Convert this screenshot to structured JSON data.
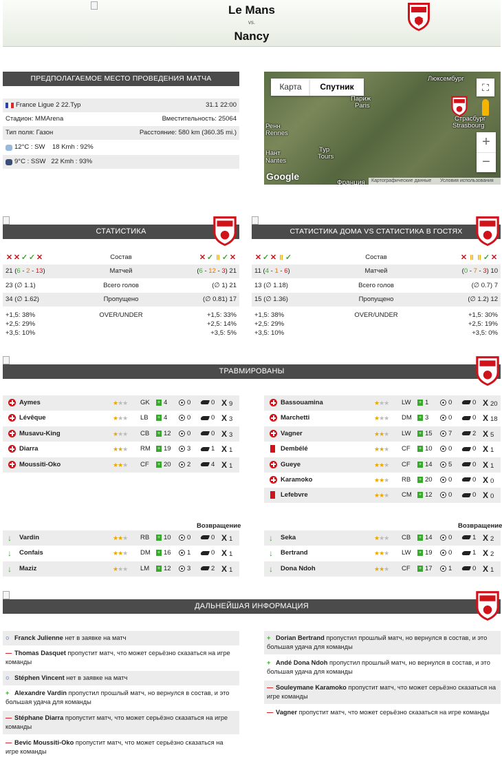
{
  "match": {
    "home": "Le Mans",
    "vs": "vs.",
    "away": "Nancy"
  },
  "venue": {
    "header": "Предполагаемое место проведения матча",
    "league": "France Ligue 2 22.Тур",
    "datetime": "31.1 22:00",
    "stadium": "Стадион: MMArena",
    "capacity": "Вместительность: 25064",
    "field": "Тип поля: Газон",
    "distance": "Расстояние: 580 km (360.35 mi.)",
    "weather1": "12°C : SW    18 Kmh : 92%",
    "weather2": "9°C : SSW   22 Kmh : 93%"
  },
  "map": {
    "btn_map": "Карта",
    "btn_sat": "Спутник",
    "footer1": "Картографические данные",
    "footer2": "Условия использования",
    "labels": [
      "Люксембург",
      "Париж",
      "Paris",
      "Ренн",
      "Rennes",
      "Нант",
      "Nantes",
      "Тур",
      "Tours",
      "Страсбург",
      "Strasbourg",
      "Google",
      "Франция"
    ]
  },
  "stats": {
    "header": "Статистика",
    "form_label": "Состав",
    "home_form": [
      "x",
      "x",
      "ok",
      "ok",
      "x"
    ],
    "away_form": [
      "x",
      "ok",
      "ii",
      "ok",
      "x"
    ],
    "rows": [
      {
        "label": "Матчей",
        "home_total": "21",
        "home_w": "6",
        "home_d": "2",
        "home_l": "13",
        "away_w": "6",
        "away_d": "12",
        "away_l": "3",
        "away_total": "21"
      },
      {
        "label": "Всего голов",
        "home": "23 (∅ 1.1)",
        "away": "(∅ 1) 21"
      },
      {
        "label": "Пропущено",
        "home": "34 (∅ 1.62)",
        "away": "(∅ 0.81) 17"
      }
    ],
    "ou_label": "OVER/UNDER",
    "home_ou": [
      "+1,5: 38%",
      "+2,5: 29%",
      "+3,5: 10%"
    ],
    "away_ou": [
      "+1,5: 33%",
      "+2,5: 14%",
      "+3,5: 5%"
    ]
  },
  "homeaway": {
    "header": "Статистика дома VS статистика в гостях",
    "form_label": "Состав",
    "home_form": [
      "x",
      "ok",
      "x",
      "ii",
      "ok"
    ],
    "away_form": [
      "x",
      "ii",
      "ii",
      "ok",
      "x"
    ],
    "rows": [
      {
        "label": "Матчей",
        "home_total": "11",
        "home_w": "4",
        "home_d": "1",
        "home_l": "6",
        "away_w": "0",
        "away_d": "7",
        "away_l": "3",
        "away_total": "10"
      },
      {
        "label": "Всего голов",
        "home": "13 (∅ 1.18)",
        "away": "(∅ 0.7) 7"
      },
      {
        "label": "Пропущено",
        "home": "15 (∅ 1.36)",
        "away": "(∅ 1.2) 12"
      }
    ],
    "ou_label": "OVER/UNDER",
    "home_ou": [
      "+1,5: 38%",
      "+2,5: 29%",
      "+3,5: 10%"
    ],
    "away_ou": [
      "+1,5: 30%",
      "+2,5: 19%",
      "+3,5: 0%"
    ]
  },
  "injured": {
    "header": "Травмированы",
    "home": [
      {
        "name": "Aymes",
        "type": "plus",
        "stars": 1,
        "pos": "GK",
        "apps": "4",
        "goals": "0",
        "assists": "0",
        "cards": "9"
      },
      {
        "name": "Lévêque",
        "type": "plus",
        "stars": 1,
        "pos": "LB",
        "apps": "4",
        "goals": "0",
        "assists": "0",
        "cards": "3"
      },
      {
        "name": "Musavu-King",
        "type": "plus",
        "stars": 1,
        "pos": "CB",
        "apps": "12",
        "goals": "0",
        "assists": "0",
        "cards": "3"
      },
      {
        "name": "Diarra",
        "type": "plus",
        "stars": 2,
        "pos": "RM",
        "apps": "19",
        "goals": "3",
        "assists": "1",
        "cards": "1"
      },
      {
        "name": "Moussiti-Oko",
        "type": "plus",
        "stars": 2,
        "pos": "CF",
        "apps": "20",
        "goals": "2",
        "assists": "4",
        "cards": "1"
      }
    ],
    "away": [
      {
        "name": "Bassouamina",
        "type": "plus",
        "stars": 1,
        "pos": "LW",
        "apps": "1",
        "goals": "0",
        "assists": "0",
        "cards": "20"
      },
      {
        "name": "Marchetti",
        "type": "plus",
        "stars": 1,
        "pos": "DM",
        "apps": "3",
        "goals": "0",
        "assists": "0",
        "cards": "18"
      },
      {
        "name": "Vagner",
        "type": "plus",
        "stars": 2,
        "pos": "LW",
        "apps": "15",
        "goals": "7",
        "assists": "2",
        "cards": "5"
      },
      {
        "name": "Dembélé",
        "type": "red",
        "stars": 2,
        "pos": "CF",
        "apps": "10",
        "goals": "0",
        "assists": "0",
        "cards": "1"
      },
      {
        "name": "Gueye",
        "type": "plus",
        "stars": 2,
        "pos": "CF",
        "apps": "14",
        "goals": "5",
        "assists": "0",
        "cards": "1"
      },
      {
        "name": "Karamoko",
        "type": "plus",
        "stars": 2,
        "pos": "RB",
        "apps": "20",
        "goals": "0",
        "assists": "0",
        "cards": "0"
      },
      {
        "name": "Lefebvre",
        "type": "red",
        "stars": 2,
        "pos": "CM",
        "apps": "12",
        "goals": "0",
        "assists": "0",
        "cards": "0"
      }
    ],
    "return_label": "Возвращение",
    "home_return": [
      {
        "name": "Vardin",
        "stars": 2,
        "pos": "RB",
        "apps": "10",
        "goals": "0",
        "assists": "0",
        "cards": "1"
      },
      {
        "name": "Confais",
        "stars": 2,
        "pos": "DM",
        "apps": "16",
        "goals": "1",
        "assists": "0",
        "cards": "1"
      },
      {
        "name": "Maziz",
        "stars": 1,
        "pos": "LM",
        "apps": "12",
        "goals": "3",
        "assists": "2",
        "cards": "1"
      }
    ],
    "away_return": [
      {
        "name": "Seka",
        "stars": 1,
        "pos": "CB",
        "apps": "14",
        "goals": "0",
        "assists": "1",
        "cards": "2"
      },
      {
        "name": "Bertrand",
        "stars": 2,
        "pos": "LW",
        "apps": "19",
        "goals": "0",
        "assists": "1",
        "cards": "2"
      },
      {
        "name": "Dona Ndoh",
        "stars": 2,
        "pos": "CF",
        "apps": "17",
        "goals": "1",
        "assists": "0",
        "cards": "1"
      }
    ]
  },
  "further": {
    "header": "Дальнейшая информация",
    "home": [
      {
        "sym": "o",
        "name": "Franck Julienne",
        "text": " нет в заявке на матч"
      },
      {
        "sym": "-",
        "name": "Thomas Dasquet",
        "text": " пропустит матч, что может серьёзно сказаться на игре команды"
      },
      {
        "sym": "o",
        "name": "Stéphen Vincent",
        "text": " нет в заявке на матч"
      },
      {
        "sym": "+",
        "name": "Alexandre Vardin",
        "text": " пропустил прошлый матч, но вернулся в состав, и это большая удача для команды"
      },
      {
        "sym": "-",
        "name": "Stéphane Diarra",
        "text": " пропустит матч, что может серьёзно сказаться на игре команды"
      },
      {
        "sym": "-",
        "name": "Bevic Moussiti-Oko",
        "text": " пропустит матч, что может серьёзно сказаться на игре команды"
      }
    ],
    "away": [
      {
        "sym": "+",
        "name": "Dorian Bertrand",
        "text": " пропустил прошлый матч, но вернулся в состав, и это большая удача для команды"
      },
      {
        "sym": "+",
        "name": "Andé Dona Ndoh",
        "text": " пропустил прошлый матч, но вернулся в состав, и это большая удача для команды"
      },
      {
        "sym": "-",
        "name": "Souleymane Karamoko",
        "text": " пропустит матч, что может серьёзно сказаться на игре команды"
      },
      {
        "sym": "-",
        "name": "Vagner",
        "text": " пропустит матч, что может серьёзно сказаться на игре команды"
      }
    ]
  },
  "icons": {
    "flag": "france-flag-icon",
    "weather1": "cloud-sun-icon",
    "weather2": "night-cloud-icon",
    "crest": "asnl-crest-icon"
  }
}
